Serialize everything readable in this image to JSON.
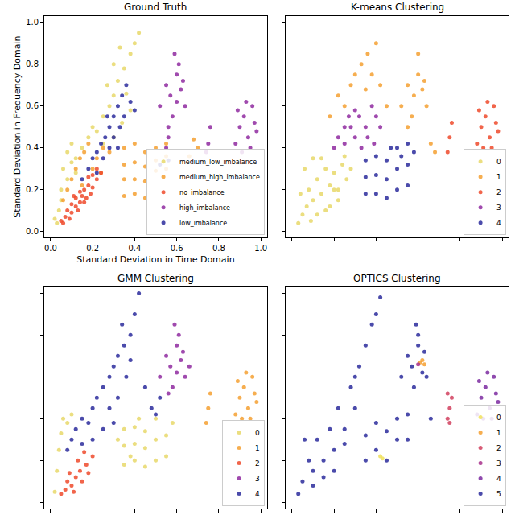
{
  "chart_data": [
    {
      "type": "scatter",
      "title": "Ground Truth",
      "xlabel": "Standard Deviation in Time Domain",
      "ylabel": "Standard Deviation in Frequency Domain",
      "xlim": [
        -0.03,
        1.03
      ],
      "ylim": [
        -0.03,
        1.03
      ],
      "xticks": [
        {
          "value": 0,
          "label": "0.0"
        },
        0.2,
        0.4,
        0.6,
        0.8,
        {
          "value": 1,
          "label": "1.0"
        }
      ],
      "yticks": [
        {
          "value": 0,
          "label": "0.0"
        },
        0.2,
        0.4,
        0.6,
        0.8,
        {
          "value": 1,
          "label": "1.0"
        }
      ],
      "grid": false,
      "legend": "lower right",
      "series": [
        {
          "name": "medium_low_imbalance",
          "color": "#e8d86a",
          "x": [
            0.03,
            0.04,
            0.05,
            0.06,
            0.08,
            0.1,
            0.12,
            0.05,
            0.08,
            0.1,
            0.15,
            0.18,
            0.2,
            0.22,
            0.25,
            0.28,
            0.3,
            0.32,
            0.35,
            0.38,
            0.4,
            0.42,
            0.27,
            0.3,
            0.33,
            0.36,
            0.25,
            0.38,
            0.02,
            0.12,
            0.3,
            0.34
          ],
          "y": [
            0.04,
            0.1,
            0.2,
            0.3,
            0.38,
            0.42,
            0.35,
            0.15,
            0.25,
            0.33,
            0.4,
            0.45,
            0.5,
            0.48,
            0.55,
            0.6,
            0.65,
            0.72,
            0.78,
            0.85,
            0.9,
            0.95,
            0.7,
            0.8,
            0.88,
            0.66,
            0.42,
            0.58,
            0.06,
            0.28,
            0.45,
            0.52
          ]
        },
        {
          "name": "medium_high_imbalance",
          "color": "#f5a031",
          "x": [
            0.06,
            0.08,
            0.1,
            0.12,
            0.14,
            0.16,
            0.18,
            0.2,
            0.22,
            0.25,
            0.28,
            0.35,
            0.35,
            0.35,
            0.35,
            0.4,
            0.4,
            0.4,
            0.4,
            0.45,
            0.45,
            0.45,
            0.45,
            0.5,
            0.5,
            0.5,
            0.55,
            0.55,
            0.55,
            0.66,
            0.68,
            0.7,
            0.15,
            0.24
          ],
          "y": [
            0.15,
            0.2,
            0.25,
            0.3,
            0.35,
            0.38,
            0.42,
            0.3,
            0.35,
            0.4,
            0.38,
            0.17,
            0.25,
            0.32,
            0.4,
            0.18,
            0.25,
            0.33,
            0.42,
            0.16,
            0.24,
            0.31,
            0.38,
            0.29,
            0.34,
            0.4,
            0.3,
            0.36,
            0.42,
            0.36,
            0.44,
            0.4,
            0.22,
            0.28
          ]
        },
        {
          "name": "no_imbalance",
          "color": "#ee4a2c",
          "x": [
            0.05,
            0.07,
            0.08,
            0.1,
            0.1,
            0.12,
            0.12,
            0.14,
            0.14,
            0.15,
            0.16,
            0.17,
            0.18,
            0.18,
            0.2,
            0.2,
            0.22,
            0.22,
            0.24,
            0.09,
            0.13,
            0.16,
            0.19,
            0.11,
            0.06
          ],
          "y": [
            0.05,
            0.07,
            0.1,
            0.09,
            0.13,
            0.12,
            0.16,
            0.14,
            0.19,
            0.17,
            0.2,
            0.16,
            0.22,
            0.26,
            0.21,
            0.27,
            0.25,
            0.3,
            0.28,
            0.06,
            0.1,
            0.14,
            0.18,
            0.17,
            0.04
          ]
        },
        {
          "name": "high_imbalance",
          "color": "#8f2aa0",
          "x": [
            0.52,
            0.55,
            0.57,
            0.6,
            0.62,
            0.64,
            0.58,
            0.6,
            0.63,
            0.56,
            0.61,
            0.59,
            0.55,
            0.56,
            0.75,
            0.76,
            0.74,
            0.88,
            0.9,
            0.92,
            0.94,
            0.96,
            0.98,
            0.91,
            0.93,
            0.95,
            0.89,
            0.97
          ],
          "y": [
            0.6,
            0.7,
            0.65,
            0.75,
            0.68,
            0.6,
            0.55,
            0.62,
            0.72,
            0.5,
            0.8,
            0.85,
            0.4,
            0.45,
            0.42,
            0.5,
            0.38,
            0.42,
            0.5,
            0.55,
            0.45,
            0.6,
            0.48,
            0.38,
            0.62,
            0.4,
            0.58,
            0.52
          ]
        },
        {
          "name": "low_imbalance",
          "color": "#2c2c9c",
          "x": [
            0.15,
            0.18,
            0.2,
            0.22,
            0.24,
            0.26,
            0.28,
            0.3,
            0.32,
            0.34,
            0.36,
            0.38,
            0.25,
            0.28,
            0.3,
            0.33,
            0.22,
            0.35,
            0.4,
            0.27,
            0.32,
            0.52,
            0.56
          ],
          "y": [
            0.25,
            0.3,
            0.35,
            0.38,
            0.42,
            0.45,
            0.5,
            0.55,
            0.6,
            0.65,
            0.7,
            0.62,
            0.35,
            0.4,
            0.45,
            0.5,
            0.28,
            0.55,
            0.58,
            0.55,
            0.4,
            0.32,
            0.34
          ]
        }
      ]
    },
    {
      "type": "scatter",
      "title": "K-means Clustering",
      "xlim": [
        -0.03,
        1.03
      ],
      "ylim": [
        -0.03,
        1.03
      ],
      "xticks": [
        0,
        0.2,
        0.4,
        0.6,
        0.8,
        1
      ],
      "yticks": [
        0,
        0.2,
        0.4,
        0.6,
        0.8,
        1
      ],
      "tick_labels": false,
      "grid": false,
      "legend": "lower right",
      "series": [
        {
          "name": "0",
          "color": "#e8d86a",
          "x": [
            0.03,
            0.05,
            0.07,
            0.08,
            0.1,
            0.12,
            0.14,
            0.16,
            0.18,
            0.2,
            0.22,
            0.24,
            0.26,
            0.28,
            0.06,
            0.1,
            0.14,
            0.18,
            0.22,
            0.12,
            0.16,
            0.2,
            0.04,
            0.09,
            0.25
          ],
          "y": [
            0.04,
            0.08,
            0.12,
            0.2,
            0.15,
            0.25,
            0.18,
            0.3,
            0.22,
            0.28,
            0.2,
            0.32,
            0.25,
            0.3,
            0.3,
            0.35,
            0.35,
            0.12,
            0.15,
            0.08,
            0.1,
            0.2,
            0.18,
            0.05,
            0.36
          ]
        },
        {
          "name": "1",
          "color": "#f5a031",
          "x": [
            0.18,
            0.22,
            0.25,
            0.28,
            0.3,
            0.33,
            0.36,
            0.4,
            0.42,
            0.45,
            0.52,
            0.55,
            0.58,
            0.6,
            0.62,
            0.64,
            0.57,
            0.6,
            0.63,
            0.55,
            0.66,
            0.68,
            0.35,
            0.38
          ],
          "y": [
            0.55,
            0.65,
            0.6,
            0.7,
            0.75,
            0.8,
            0.85,
            0.9,
            0.7,
            0.6,
            0.6,
            0.7,
            0.65,
            0.75,
            0.68,
            0.6,
            0.55,
            0.85,
            0.72,
            0.5,
            0.42,
            0.38,
            0.68,
            0.75
          ]
        },
        {
          "name": "2",
          "color": "#ee4a2c",
          "x": [
            0.74,
            0.75,
            0.76,
            0.88,
            0.9,
            0.92,
            0.94,
            0.96,
            0.98,
            0.91,
            0.93,
            0.95,
            0.89,
            0.97
          ],
          "y": [
            0.38,
            0.45,
            0.52,
            0.42,
            0.5,
            0.55,
            0.45,
            0.6,
            0.48,
            0.4,
            0.62,
            0.4,
            0.58,
            0.52
          ]
        },
        {
          "name": "3",
          "color": "#8f2aa0",
          "x": [
            0.2,
            0.22,
            0.25,
            0.28,
            0.3,
            0.32,
            0.35,
            0.38,
            0.4,
            0.42,
            0.27,
            0.33,
            0.36,
            0.3,
            0.25,
            0.39
          ],
          "y": [
            0.4,
            0.45,
            0.42,
            0.5,
            0.45,
            0.55,
            0.5,
            0.6,
            0.55,
            0.5,
            0.55,
            0.4,
            0.45,
            0.58,
            0.5,
            0.42
          ]
        },
        {
          "name": "4",
          "color": "#2c2c9c",
          "x": [
            0.35,
            0.35,
            0.35,
            0.4,
            0.4,
            0.4,
            0.45,
            0.45,
            0.45,
            0.5,
            0.5,
            0.5,
            0.55,
            0.55,
            0.55,
            0.58,
            0.52,
            0.47
          ],
          "y": [
            0.18,
            0.26,
            0.34,
            0.18,
            0.27,
            0.36,
            0.16,
            0.25,
            0.34,
            0.2,
            0.3,
            0.4,
            0.22,
            0.32,
            0.42,
            0.38,
            0.36,
            0.4
          ]
        }
      ]
    },
    {
      "type": "scatter",
      "title": "GMM Clustering",
      "xlim": [
        -0.03,
        1.03
      ],
      "ylim": [
        -0.03,
        1.03
      ],
      "xticks": [
        0,
        0.2,
        0.4,
        0.6,
        0.8,
        1
      ],
      "yticks": [
        0,
        0.2,
        0.4,
        0.6,
        0.8,
        1
      ],
      "tick_labels": false,
      "grid": false,
      "legend": "lower right",
      "series": [
        {
          "name": "0",
          "color": "#e8d86a",
          "x": [
            0.02,
            0.03,
            0.04,
            0.05,
            0.06,
            0.08,
            0.1,
            0.35,
            0.35,
            0.35,
            0.4,
            0.4,
            0.4,
            0.45,
            0.45,
            0.45,
            0.5,
            0.5,
            0.5,
            0.55,
            0.55,
            0.58,
            0.32,
            0.38,
            0.42
          ],
          "y": [
            0.05,
            0.15,
            0.25,
            0.33,
            0.4,
            0.38,
            0.42,
            0.18,
            0.27,
            0.35,
            0.2,
            0.28,
            0.36,
            0.17,
            0.26,
            0.34,
            0.2,
            0.3,
            0.4,
            0.22,
            0.32,
            0.38,
            0.3,
            0.22,
            0.4
          ]
        },
        {
          "name": "1",
          "color": "#f5a031",
          "x": [
            0.74,
            0.75,
            0.76,
            0.88,
            0.9,
            0.92,
            0.94,
            0.96,
            0.98,
            0.91,
            0.93,
            0.95,
            0.89,
            0.97
          ],
          "y": [
            0.38,
            0.45,
            0.52,
            0.42,
            0.5,
            0.55,
            0.45,
            0.6,
            0.48,
            0.4,
            0.62,
            0.4,
            0.58,
            0.52
          ]
        },
        {
          "name": "2",
          "color": "#ee4a2c",
          "x": [
            0.05,
            0.07,
            0.08,
            0.1,
            0.12,
            0.14,
            0.15,
            0.17,
            0.18,
            0.2,
            0.09,
            0.13,
            0.16,
            0.11
          ],
          "y": [
            0.04,
            0.06,
            0.1,
            0.08,
            0.12,
            0.15,
            0.1,
            0.18,
            0.14,
            0.22,
            0.14,
            0.2,
            0.24,
            0.05
          ]
        },
        {
          "name": "3",
          "color": "#8f2aa0",
          "x": [
            0.52,
            0.55,
            0.57,
            0.6,
            0.62,
            0.64,
            0.58,
            0.6,
            0.63,
            0.56,
            0.61,
            0.59,
            0.66
          ],
          "y": [
            0.6,
            0.7,
            0.65,
            0.75,
            0.68,
            0.6,
            0.55,
            0.62,
            0.72,
            0.52,
            0.8,
            0.85,
            0.65
          ]
        },
        {
          "name": "4",
          "color": "#2c2c9c",
          "x": [
            0.08,
            0.1,
            0.12,
            0.15,
            0.18,
            0.2,
            0.22,
            0.25,
            0.28,
            0.3,
            0.32,
            0.35,
            0.38,
            0.4,
            0.42,
            0.28,
            0.32,
            0.36,
            0.25,
            0.2,
            0.45,
            0.48,
            0.5,
            0.52,
            0.15,
            0.3,
            0.34,
            0.38
          ],
          "y": [
            0.25,
            0.3,
            0.35,
            0.4,
            0.38,
            0.45,
            0.5,
            0.55,
            0.6,
            0.65,
            0.7,
            0.75,
            0.8,
            0.9,
            1.0,
            0.45,
            0.5,
            0.6,
            0.35,
            0.3,
            0.55,
            0.45,
            0.42,
            0.5,
            0.28,
            0.38,
            0.85,
            0.68
          ]
        }
      ]
    },
    {
      "type": "scatter",
      "title": "OPTICS Clustering",
      "xlim": [
        -0.03,
        1.03
      ],
      "ylim": [
        -0.03,
        1.03
      ],
      "xticks": [
        0,
        0.2,
        0.4,
        0.6,
        0.8,
        1
      ],
      "yticks": [
        0,
        0.2,
        0.4,
        0.6,
        0.8,
        1
      ],
      "tick_labels": false,
      "grid": false,
      "legend": "lower right",
      "series": [
        {
          "name": "0",
          "color": "#f0e15a",
          "x": [
            0.42,
            0.43
          ],
          "y": [
            0.22,
            0.21
          ]
        },
        {
          "name": "1",
          "color": "#f5a031",
          "x": [
            0.61,
            0.62,
            0.63
          ],
          "y": [
            0.67,
            0.68,
            0.66
          ]
        },
        {
          "name": "2",
          "color": "#d1405e",
          "x": [
            0.74,
            0.75,
            0.76,
            0.75,
            0.74
          ],
          "y": [
            0.4,
            0.45,
            0.5,
            0.38,
            0.52
          ]
        },
        {
          "name": "3",
          "color": "#a8308c",
          "x": [
            0.6
          ],
          "y": [
            0.66
          ]
        },
        {
          "name": "4",
          "color": "#7b2aa0",
          "x": [
            0.88,
            0.9,
            0.92,
            0.94,
            0.96,
            0.98,
            0.91,
            0.93,
            0.95,
            0.89,
            0.97
          ],
          "y": [
            0.42,
            0.5,
            0.55,
            0.45,
            0.6,
            0.48,
            0.4,
            0.62,
            0.4,
            0.58,
            0.52
          ]
        },
        {
          "name": "5",
          "color": "#2c2c9c",
          "x": [
            0.03,
            0.05,
            0.08,
            0.1,
            0.12,
            0.15,
            0.18,
            0.2,
            0.22,
            0.25,
            0.28,
            0.3,
            0.32,
            0.35,
            0.38,
            0.4,
            0.42,
            0.35,
            0.35,
            0.4,
            0.4,
            0.45,
            0.45,
            0.5,
            0.5,
            0.55,
            0.55,
            0.52,
            0.55,
            0.57,
            0.6,
            0.62,
            0.64,
            0.58,
            0.6,
            0.63,
            0.59,
            0.1,
            0.15,
            0.2,
            0.25,
            0.06,
            0.3,
            0.66
          ],
          "y": [
            0.04,
            0.1,
            0.2,
            0.15,
            0.3,
            0.2,
            0.35,
            0.25,
            0.45,
            0.35,
            0.55,
            0.45,
            0.65,
            0.75,
            0.85,
            0.9,
            0.98,
            0.2,
            0.32,
            0.25,
            0.38,
            0.2,
            0.34,
            0.3,
            0.4,
            0.3,
            0.42,
            0.6,
            0.7,
            0.65,
            0.75,
            0.62,
            0.6,
            0.55,
            0.8,
            0.72,
            0.85,
            0.08,
            0.12,
            0.15,
            0.28,
            0.3,
            0.6,
            0.4
          ]
        }
      ]
    }
  ]
}
